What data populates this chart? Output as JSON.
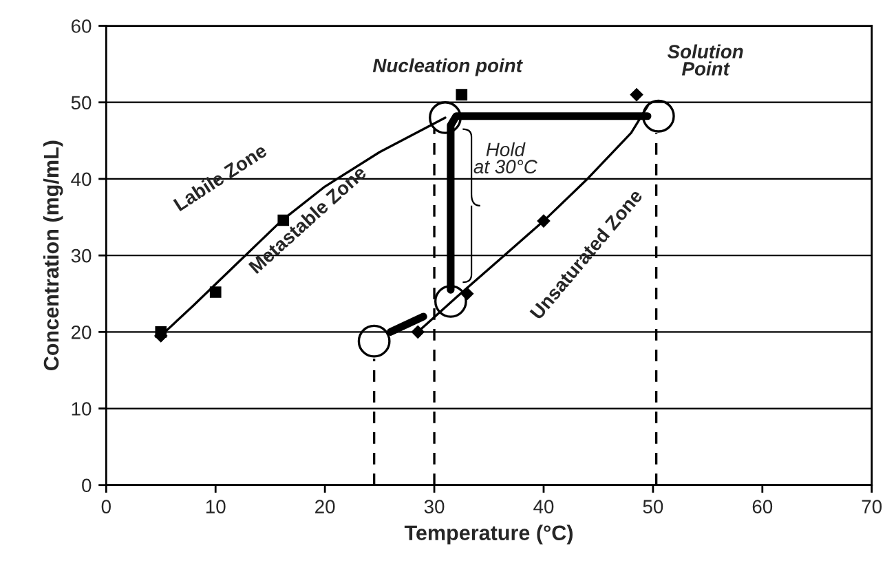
{
  "chart_data": {
    "type": "scatter",
    "xlabel": "Temperature (°C)",
    "ylabel": "Concentration (mg/mL)",
    "xlim": [
      0,
      70
    ],
    "xticks": [
      0,
      10,
      20,
      30,
      40,
      50,
      60,
      70
    ],
    "ylim": [
      0,
      60
    ],
    "yticks": [
      0,
      10,
      20,
      30,
      40,
      50,
      60
    ],
    "grid": "y",
    "legend": false,
    "series": [
      {
        "type": "line",
        "color": "#000000",
        "marker": "none",
        "line_style": "solid",
        "x": [
          5,
          8,
          12,
          16,
          20,
          25,
          31
        ],
        "values": [
          19.5,
          23.5,
          29,
          34.5,
          39,
          43.5,
          48
        ]
      },
      {
        "type": "line",
        "color": "#000000",
        "marker": "none",
        "line_style": "solid",
        "x": [
          28.5,
          32,
          36,
          40,
          44,
          48,
          49.5
        ],
        "values": [
          20,
          24.5,
          29.5,
          34.5,
          40,
          46,
          49.5
        ]
      },
      {
        "type": "scatter",
        "color": "#000000",
        "marker": "square",
        "x": [
          5,
          10,
          16.2,
          32.5
        ],
        "values": [
          20,
          25.2,
          34.6,
          51
        ]
      },
      {
        "type": "scatter",
        "color": "#000000",
        "marker": "diamond",
        "x": [
          5,
          28.5,
          33,
          40,
          48.5
        ],
        "values": [
          19.5,
          20,
          25,
          34.5,
          51
        ]
      },
      {
        "type": "line",
        "color": "#000000",
        "marker": "none",
        "line_style": "solid",
        "x": [
          26,
          29
        ],
        "values": [
          20,
          22
        ]
      },
      {
        "type": "line",
        "color": "#000000",
        "marker": "none",
        "line_style": "solid",
        "x": [
          31.5,
          31.5,
          32,
          49.5
        ],
        "values": [
          25.5,
          47,
          48.2,
          48.2
        ]
      },
      {
        "type": "line",
        "color": "#000000",
        "marker": "none",
        "line_style": "dashed",
        "x": [
          24.5,
          24.5
        ],
        "values": [
          0,
          16.5
        ]
      },
      {
        "type": "line",
        "color": "#000000",
        "marker": "none",
        "line_style": "dashed",
        "x": [
          30,
          30
        ],
        "values": [
          0,
          46.5
        ]
      },
      {
        "type": "line",
        "color": "#000000",
        "marker": "none",
        "line_style": "dashed",
        "x": [
          50.3,
          50.3
        ],
        "values": [
          0,
          46
        ]
      },
      {
        "type": "scatter",
        "color": "#000000",
        "marker": "circle",
        "x": [
          24.5,
          31.5,
          31,
          50.5
        ],
        "values": [
          18.8,
          24,
          48,
          48.2
        ]
      }
    ],
    "annotations": [
      "Labile Zone",
      "Metastable Zone",
      "Unsaturated Zone",
      "Nucleation point",
      "Solution\nPoint",
      {
        "text": "Hold\nat 30°C",
        "x": 31.5,
        "y": 36.5
      }
    ]
  }
}
